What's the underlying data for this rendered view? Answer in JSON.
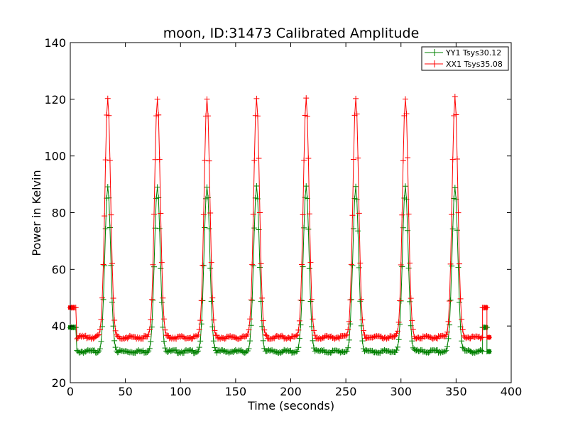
{
  "chart_data": {
    "type": "line",
    "title": "moon, ID:31473 Calibrated Amplitude",
    "xlabel": "Time (seconds)",
    "ylabel": "Power in Kelvin",
    "xlim": [
      0,
      400
    ],
    "ylim": [
      20,
      140
    ],
    "xticks": [
      "0",
      "50",
      "100",
      "150",
      "200",
      "250",
      "300",
      "350",
      "400"
    ],
    "yticks": [
      "20",
      "40",
      "60",
      "80",
      "100",
      "120",
      "140"
    ],
    "grid": false,
    "legend_position": "top-right",
    "peak_centers": [
      34,
      79,
      124,
      169,
      214,
      259,
      304,
      349
    ],
    "series": [
      {
        "name": "YY1 Tsys30.12",
        "color": "#008000",
        "marker": "+",
        "start_level": 39.5,
        "start_x": [
          0,
          5
        ],
        "end_level": 39.5,
        "end_x": [
          374,
          378
        ],
        "final_point": [
          380,
          31
        ],
        "baseline": 31,
        "peak": 89
      },
      {
        "name": "XX1 Tsys35.08",
        "color": "#ff0000",
        "marker": "+",
        "start_level": 46.5,
        "start_x": [
          0,
          5
        ],
        "end_level": 46.5,
        "end_x": [
          374,
          378
        ],
        "final_point": [
          380,
          36
        ],
        "baseline": 36,
        "peak": 120.5
      }
    ]
  }
}
